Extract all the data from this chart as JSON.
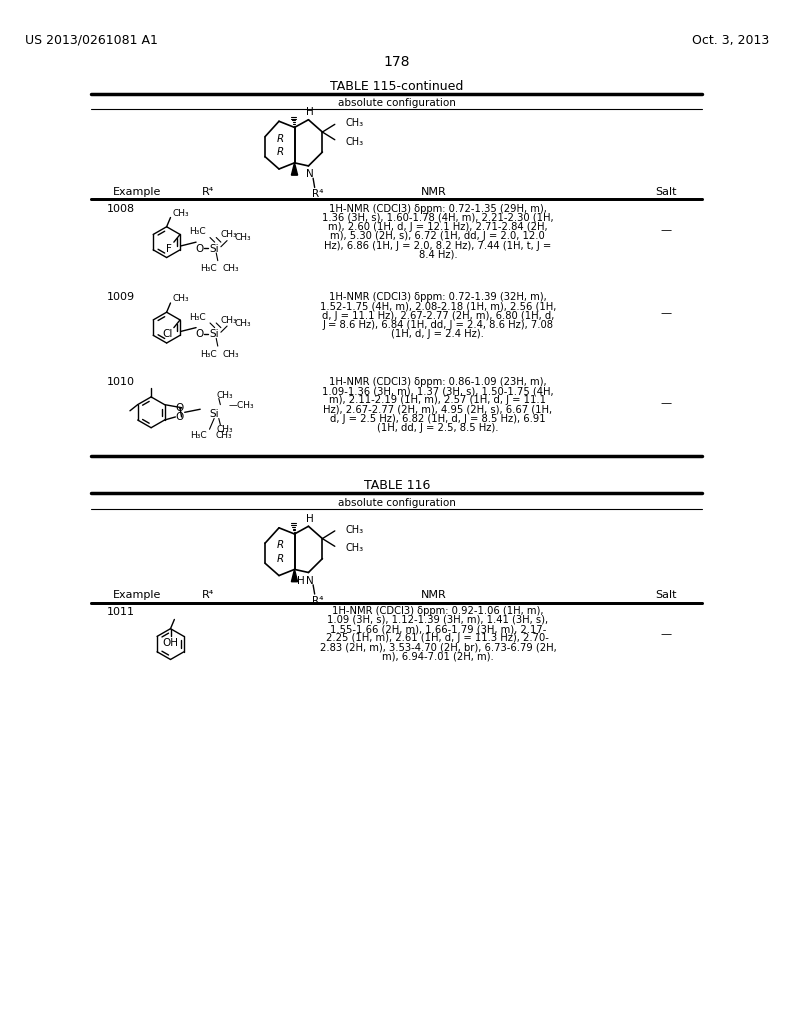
{
  "background_color": "#ffffff",
  "header_left": "US 2013/0261081 A1",
  "header_right": "Oct. 3, 2013",
  "page_number": "178",
  "table115_title": "TABLE 115-continued",
  "table115_subheader": "absolute configuration",
  "table115_col_headers": [
    "Example",
    "R⁴",
    "NMR",
    "Salt"
  ],
  "table115_rows": [
    {
      "example": "1008",
      "nmr": "1H-NMR (CDCl3) δppm: 0.72-1.35 (29H, m),\n1.36 (3H, s), 1.60-1.78 (4H, m), 2.21-2.30 (1H,\nm), 2.60 (1H, d, J = 12.1 Hz), 2.71-2.84 (2H,\nm), 5.30 (2H, s), 6.72 (1H, dd, J = 2.0, 12.0\nHz), 6.86 (1H, J = 2.0, 8.2 Hz), 7.44 (1H, t, J =\n8.4 Hz).",
      "salt": "—"
    },
    {
      "example": "1009",
      "nmr": "1H-NMR (CDCl3) δppm: 0.72-1.39 (32H, m),\n1.52-1.75 (4H, m), 2.08-2.18 (1H, m), 2.56 (1H,\nd, J = 11.1 Hz), 2.67-2.77 (2H, m), 6.80 (1H, d,\nJ = 8.6 Hz), 6.84 (1H, dd, J = 2.4, 8.6 Hz), 7.08\n(1H, d, J = 2.4 Hz).",
      "salt": "—"
    },
    {
      "example": "1010",
      "nmr": "1H-NMR (CDCl3) δppm: 0.86-1.09 (23H, m),\n1.09-1.36 (3H, m), 1.37 (3H, s), 1.50-1.75 (4H,\nm), 2.11-2.19 (1H, m), 2.57 (1H, d, J = 11.1\nHz), 2.67-2.77 (2H, m), 4.95 (2H, s), 6.67 (1H,\nd, J = 2.5 Hz), 6.82 (1H, d, J = 8.5 Hz), 6.91\n(1H, dd, J = 2.5, 8.5 Hz).",
      "salt": "—"
    }
  ],
  "table116_title": "TABLE 116",
  "table116_subheader": "absolute configuration",
  "table116_col_headers": [
    "Example",
    "R⁴",
    "NMR",
    "Salt"
  ],
  "table116_rows": [
    {
      "example": "1011",
      "nmr": "1H-NMR (CDCl3) δppm: 0.92-1.06 (1H, m),\n1.09 (3H, s), 1.12-1.39 (3H, m), 1.41 (3H, s),\n1.55-1.66 (2H, m), 1.66-1.79 (3H, m), 2.17-\n2.25 (1H, m), 2.61 (1H, d, J = 11.3 Hz), 2.70-\n2.83 (2H, m), 3.53-4.70 (2H, br), 6.73-6.79 (2H,\nm), 6.94-7.01 (2H, m).",
      "salt": "—"
    }
  ]
}
